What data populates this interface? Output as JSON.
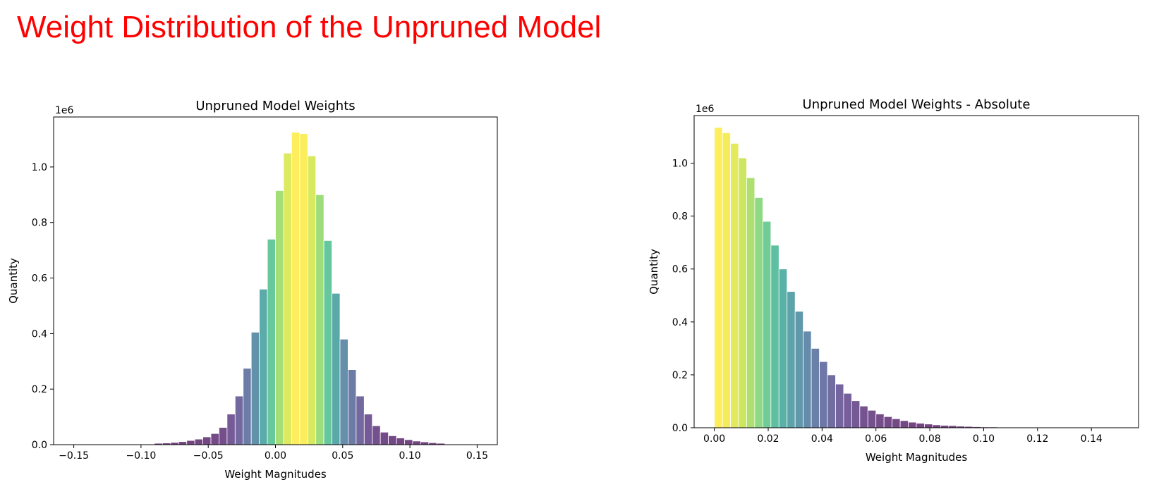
{
  "slide": {
    "title": "Weight Distribution of the Unpruned Model",
    "title_color": "#ff0000"
  },
  "chart_data": [
    {
      "type": "bar",
      "title": "Unpruned Model Weights",
      "xlabel": "Weight Magnitudes",
      "ylabel": "Quantity",
      "y_scale_label": "1e6",
      "xlim": [
        -0.165,
        0.165
      ],
      "ylim": [
        0,
        1.18
      ],
      "xticks": [
        -0.15,
        -0.1,
        -0.05,
        0.0,
        0.05,
        0.1,
        0.15
      ],
      "xtick_labels": [
        "−0.15",
        "−0.10",
        "−0.05",
        "0.00",
        "0.05",
        "0.10",
        "0.15"
      ],
      "yticks": [
        0.0,
        0.2,
        0.4,
        0.6,
        0.8,
        1.0
      ],
      "ytick_labels": [
        "0.0",
        "0.2",
        "0.4",
        "0.6",
        "0.8",
        "1.0"
      ],
      "bin_start": -0.15,
      "bin_width": 0.006,
      "values": [
        0.0,
        0.0,
        0.0,
        0.0,
        0.0,
        0.0,
        0.0,
        0.0,
        0.0,
        0.0,
        0.005,
        0.006,
        0.008,
        0.011,
        0.015,
        0.02,
        0.028,
        0.04,
        0.062,
        0.11,
        0.175,
        0.275,
        0.405,
        0.56,
        0.74,
        0.915,
        1.05,
        1.125,
        1.12,
        1.04,
        0.9,
        0.735,
        0.545,
        0.38,
        0.27,
        0.175,
        0.11,
        0.068,
        0.045,
        0.032,
        0.024,
        0.018,
        0.013,
        0.01,
        0.007,
        0.005,
        0.0,
        0.0,
        0.0,
        0.0
      ],
      "colormap": "viridis"
    },
    {
      "type": "bar",
      "title": "Unpruned Model Weights - Absolute",
      "xlabel": "Weight Magnitudes",
      "ylabel": "Quantity",
      "y_scale_label": "1e6",
      "xlim": [
        -0.0075,
        0.1575
      ],
      "ylim": [
        0,
        1.18
      ],
      "xticks": [
        0.0,
        0.02,
        0.04,
        0.06,
        0.08,
        0.1,
        0.12,
        0.14
      ],
      "xtick_labels": [
        "0.00",
        "0.02",
        "0.04",
        "0.06",
        "0.08",
        "0.10",
        "0.12",
        "0.14"
      ],
      "yticks": [
        0.0,
        0.2,
        0.4,
        0.6,
        0.8,
        1.0
      ],
      "ytick_labels": [
        "0.0",
        "0.2",
        "0.4",
        "0.6",
        "0.8",
        "1.0"
      ],
      "bin_start": 0.0,
      "bin_width": 0.003,
      "values": [
        1.135,
        1.115,
        1.075,
        1.02,
        0.945,
        0.87,
        0.78,
        0.69,
        0.6,
        0.515,
        0.44,
        0.365,
        0.3,
        0.25,
        0.2,
        0.165,
        0.13,
        0.102,
        0.082,
        0.066,
        0.052,
        0.042,
        0.034,
        0.027,
        0.021,
        0.017,
        0.014,
        0.011,
        0.009,
        0.008,
        0.006,
        0.005,
        0.004,
        0.003,
        0.003,
        0.002,
        0.002,
        0.001,
        0.001,
        0.001,
        0.001,
        0.001,
        0.001,
        0.0,
        0.0,
        0.0,
        0.0,
        0.0,
        0.0,
        0.0
      ],
      "colormap": "viridis"
    }
  ]
}
